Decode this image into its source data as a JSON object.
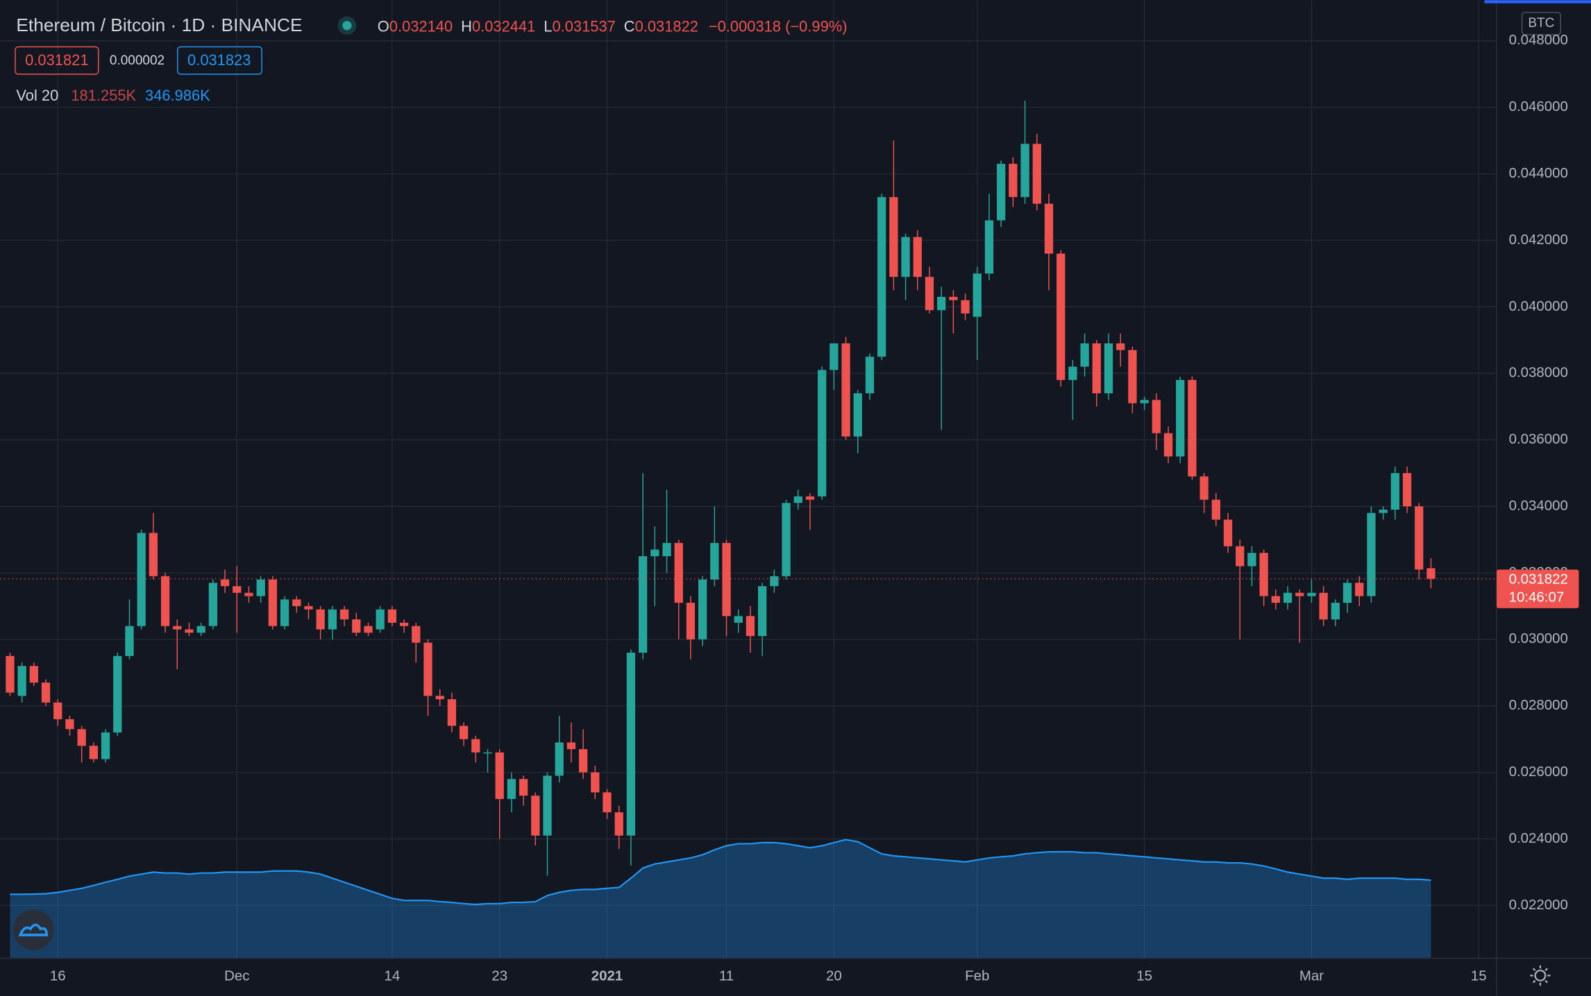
{
  "header": {
    "symbol": "Ethereum / Bitcoin · 1D · BINANCE",
    "ohlc": [
      {
        "label": "O",
        "value": "0.032140"
      },
      {
        "label": "H",
        "value": "0.032441"
      },
      {
        "label": "L",
        "value": "0.031537"
      },
      {
        "label": "C",
        "value": "0.031822"
      }
    ],
    "change": "−0.000318 (−0.99%)",
    "bid": "0.031821",
    "spread": "0.000002",
    "ask": "0.031823",
    "vol_label": "Vol 20",
    "volume": "181.255K",
    "volume_ma": "346.986K",
    "currency": "BTC"
  },
  "chart_data": {
    "type": "candlestick",
    "up_color": "#26a69a",
    "down_color": "#ef5350",
    "grid": true,
    "xlim": [
      -0.84,
      124.5
    ],
    "xticks": [
      {
        "value": 4,
        "label": "16"
      },
      {
        "value": 19,
        "label": "Dec"
      },
      {
        "value": 32,
        "label": "14"
      },
      {
        "value": 41,
        "label": "23"
      },
      {
        "value": 50,
        "label": "2021"
      },
      {
        "value": 60,
        "label": "11"
      },
      {
        "value": 69,
        "label": "20"
      },
      {
        "value": 81,
        "label": "Feb"
      },
      {
        "value": 95,
        "label": "15"
      },
      {
        "value": 109,
        "label": "Mar"
      },
      {
        "value": 123,
        "label": "15"
      }
    ],
    "ylim": [
      0.02041,
      0.04922
    ],
    "yticks": [
      {
        "value": 0.022,
        "label": "0.022000"
      },
      {
        "value": 0.024,
        "label": "0.024000"
      },
      {
        "value": 0.026,
        "label": "0.026000"
      },
      {
        "value": 0.028,
        "label": "0.028000"
      },
      {
        "value": 0.03,
        "label": "0.030000"
      },
      {
        "value": 0.032,
        "label": "0.032000"
      },
      {
        "value": 0.034,
        "label": "0.034000"
      },
      {
        "value": 0.036,
        "label": "0.036000"
      },
      {
        "value": 0.038,
        "label": "0.038000"
      },
      {
        "value": 0.04,
        "label": "0.040000"
      },
      {
        "value": 0.042,
        "label": "0.042000"
      },
      {
        "value": 0.044,
        "label": "0.044000"
      },
      {
        "value": 0.046,
        "label": "0.046000"
      },
      {
        "value": 0.048,
        "label": "0.048000"
      }
    ],
    "last_price": {
      "value": 0.031822,
      "label": "0.031822"
    },
    "countdown": "10:46:07",
    "ohlc": [
      [
        0.0295,
        0.0296,
        0.0283,
        0.0284
      ],
      [
        0.0283,
        0.0293,
        0.0281,
        0.0292
      ],
      [
        0.0292,
        0.0293,
        0.0286,
        0.0287
      ],
      [
        0.0287,
        0.0288,
        0.028,
        0.0281
      ],
      [
        0.0281,
        0.0282,
        0.0274,
        0.0276
      ],
      [
        0.0276,
        0.0277,
        0.0271,
        0.0273
      ],
      [
        0.0273,
        0.0274,
        0.0263,
        0.0268
      ],
      [
        0.0268,
        0.0269,
        0.0263,
        0.0264
      ],
      [
        0.0264,
        0.0273,
        0.0263,
        0.0272
      ],
      [
        0.0272,
        0.0296,
        0.0271,
        0.0295
      ],
      [
        0.0295,
        0.0312,
        0.0294,
        0.0304
      ],
      [
        0.0304,
        0.0333,
        0.0303,
        0.0332
      ],
      [
        0.0332,
        0.0338,
        0.0318,
        0.0319
      ],
      [
        0.0319,
        0.032,
        0.0302,
        0.0304
      ],
      [
        0.0304,
        0.0306,
        0.0291,
        0.0303
      ],
      [
        0.0303,
        0.0305,
        0.0301,
        0.0302
      ],
      [
        0.0302,
        0.0305,
        0.0301,
        0.0304
      ],
      [
        0.0304,
        0.0318,
        0.0303,
        0.0317
      ],
      [
        0.0318,
        0.0321,
        0.0314,
        0.0316
      ],
      [
        0.0316,
        0.0322,
        0.0302,
        0.0314
      ],
      [
        0.0314,
        0.0316,
        0.0311,
        0.0313
      ],
      [
        0.0313,
        0.0319,
        0.0311,
        0.0318
      ],
      [
        0.0318,
        0.0319,
        0.0303,
        0.0304
      ],
      [
        0.0304,
        0.0313,
        0.0303,
        0.0312
      ],
      [
        0.0312,
        0.0313,
        0.0308,
        0.031
      ],
      [
        0.031,
        0.0311,
        0.0306,
        0.0309
      ],
      [
        0.0309,
        0.031,
        0.03,
        0.0303
      ],
      [
        0.0303,
        0.031,
        0.03,
        0.0309
      ],
      [
        0.0309,
        0.031,
        0.0304,
        0.0306
      ],
      [
        0.0306,
        0.0308,
        0.0301,
        0.0302
      ],
      [
        0.0304,
        0.0305,
        0.0301,
        0.0302
      ],
      [
        0.0303,
        0.031,
        0.0302,
        0.0309
      ],
      [
        0.0309,
        0.031,
        0.0304,
        0.0305
      ],
      [
        0.0305,
        0.0306,
        0.0302,
        0.0304
      ],
      [
        0.0304,
        0.0305,
        0.0293,
        0.0299
      ],
      [
        0.0299,
        0.03,
        0.0277,
        0.0283
      ],
      [
        0.0283,
        0.0285,
        0.028,
        0.0282
      ],
      [
        0.0282,
        0.0284,
        0.0272,
        0.0274
      ],
      [
        0.0274,
        0.0275,
        0.0268,
        0.027
      ],
      [
        0.027,
        0.0271,
        0.0263,
        0.0266
      ],
      [
        0.0266,
        0.0267,
        0.026,
        0.0266
      ],
      [
        0.0266,
        0.0267,
        0.024,
        0.0252
      ],
      [
        0.0252,
        0.026,
        0.0248,
        0.0258
      ],
      [
        0.0258,
        0.0259,
        0.025,
        0.0253
      ],
      [
        0.0253,
        0.0254,
        0.0238,
        0.0241
      ],
      [
        0.0241,
        0.026,
        0.0229,
        0.0259
      ],
      [
        0.0259,
        0.0277,
        0.0257,
        0.0269
      ],
      [
        0.0269,
        0.0275,
        0.0263,
        0.0267
      ],
      [
        0.0267,
        0.0273,
        0.0258,
        0.026
      ],
      [
        0.026,
        0.0262,
        0.0252,
        0.0254
      ],
      [
        0.0254,
        0.0255,
        0.0246,
        0.0248
      ],
      [
        0.0248,
        0.025,
        0.0237,
        0.0241
      ],
      [
        0.0241,
        0.0297,
        0.0232,
        0.0296
      ],
      [
        0.0296,
        0.035,
        0.0294,
        0.0325
      ],
      [
        0.0325,
        0.0334,
        0.031,
        0.0327
      ],
      [
        0.0325,
        0.0345,
        0.032,
        0.0329
      ],
      [
        0.0329,
        0.033,
        0.03,
        0.0311
      ],
      [
        0.0311,
        0.0313,
        0.0294,
        0.03
      ],
      [
        0.03,
        0.0319,
        0.0298,
        0.0318
      ],
      [
        0.0318,
        0.034,
        0.0316,
        0.0329
      ],
      [
        0.0329,
        0.033,
        0.0301,
        0.0307
      ],
      [
        0.0305,
        0.0309,
        0.0302,
        0.0307
      ],
      [
        0.0307,
        0.031,
        0.0296,
        0.0301
      ],
      [
        0.0301,
        0.0317,
        0.0295,
        0.0316
      ],
      [
        0.0316,
        0.0321,
        0.0314,
        0.0319
      ],
      [
        0.0319,
        0.0342,
        0.0318,
        0.0341
      ],
      [
        0.0341,
        0.0345,
        0.0339,
        0.0343
      ],
      [
        0.0343,
        0.0344,
        0.0333,
        0.0342
      ],
      [
        0.0343,
        0.0382,
        0.0342,
        0.0381
      ],
      [
        0.0381,
        0.0389,
        0.0375,
        0.0389
      ],
      [
        0.0389,
        0.0391,
        0.036,
        0.0361
      ],
      [
        0.0361,
        0.0375,
        0.0356,
        0.0374
      ],
      [
        0.0374,
        0.0386,
        0.0372,
        0.0385
      ],
      [
        0.0385,
        0.0434,
        0.0384,
        0.0433
      ],
      [
        0.0433,
        0.045,
        0.0405,
        0.0409
      ],
      [
        0.0409,
        0.0422,
        0.0402,
        0.0421
      ],
      [
        0.0421,
        0.0423,
        0.0405,
        0.0409
      ],
      [
        0.0409,
        0.0412,
        0.0398,
        0.0399
      ],
      [
        0.0399,
        0.0406,
        0.0363,
        0.0403
      ],
      [
        0.0403,
        0.0405,
        0.0392,
        0.0402
      ],
      [
        0.0402,
        0.0404,
        0.0396,
        0.0398
      ],
      [
        0.0397,
        0.0412,
        0.0384,
        0.041
      ],
      [
        0.041,
        0.0434,
        0.0408,
        0.0426
      ],
      [
        0.0426,
        0.0444,
        0.0424,
        0.0443
      ],
      [
        0.0443,
        0.0445,
        0.043,
        0.0433
      ],
      [
        0.0433,
        0.0462,
        0.0431,
        0.0449
      ],
      [
        0.0449,
        0.0452,
        0.0429,
        0.0431
      ],
      [
        0.0431,
        0.0434,
        0.0405,
        0.0416
      ],
      [
        0.0416,
        0.0417,
        0.0376,
        0.0378
      ],
      [
        0.0378,
        0.0384,
        0.0366,
        0.0382
      ],
      [
        0.0382,
        0.0392,
        0.0379,
        0.0389
      ],
      [
        0.0389,
        0.039,
        0.037,
        0.0374
      ],
      [
        0.0374,
        0.0392,
        0.0372,
        0.0389
      ],
      [
        0.0389,
        0.0392,
        0.0382,
        0.0387
      ],
      [
        0.0387,
        0.0388,
        0.0368,
        0.0371
      ],
      [
        0.0371,
        0.0373,
        0.0369,
        0.0372
      ],
      [
        0.0372,
        0.0374,
        0.0357,
        0.0362
      ],
      [
        0.0362,
        0.0364,
        0.0353,
        0.0355
      ],
      [
        0.0355,
        0.0379,
        0.0353,
        0.0378
      ],
      [
        0.0378,
        0.0379,
        0.0348,
        0.0349
      ],
      [
        0.0349,
        0.035,
        0.0338,
        0.0342
      ],
      [
        0.0342,
        0.0344,
        0.0334,
        0.0336
      ],
      [
        0.0336,
        0.0338,
        0.0326,
        0.0328
      ],
      [
        0.0328,
        0.033,
        0.03,
        0.0322
      ],
      [
        0.0322,
        0.0328,
        0.0316,
        0.0326
      ],
      [
        0.0326,
        0.0327,
        0.031,
        0.0313
      ],
      [
        0.0313,
        0.0315,
        0.0309,
        0.0311
      ],
      [
        0.0311,
        0.0316,
        0.0309,
        0.0314
      ],
      [
        0.0314,
        0.0315,
        0.0299,
        0.0313
      ],
      [
        0.0313,
        0.0318,
        0.0311,
        0.0314
      ],
      [
        0.0314,
        0.0316,
        0.0304,
        0.0306
      ],
      [
        0.0306,
        0.0312,
        0.0304,
        0.0311
      ],
      [
        0.0311,
        0.0318,
        0.0308,
        0.0317
      ],
      [
        0.0317,
        0.0319,
        0.031,
        0.0313
      ],
      [
        0.0313,
        0.034,
        0.0311,
        0.0338
      ],
      [
        0.0338,
        0.034,
        0.0336,
        0.0339
      ],
      [
        0.0339,
        0.0352,
        0.0336,
        0.035
      ],
      [
        0.035,
        0.0352,
        0.0338,
        0.034
      ],
      [
        0.034,
        0.0341,
        0.0318,
        0.0321
      ],
      [
        0.03214,
        0.032441,
        0.031537,
        0.031822
      ]
    ],
    "volume_ma": {
      "color": "#2196f3",
      "values": [
        284,
        284,
        285,
        287,
        293,
        302,
        311,
        324,
        338,
        351,
        365,
        374,
        383,
        379,
        379,
        374,
        379,
        379,
        383,
        383,
        383,
        383,
        388,
        388,
        388,
        383,
        374,
        356,
        338,
        320,
        302,
        284,
        266,
        257,
        257,
        257,
        252,
        248,
        243,
        239,
        243,
        243,
        248,
        248,
        252,
        279,
        293,
        302,
        306,
        306,
        311,
        315,
        356,
        401,
        419,
        428,
        437,
        446,
        460,
        482,
        500,
        509,
        509,
        514,
        514,
        509,
        500,
        491,
        500,
        514,
        527,
        518,
        491,
        464,
        455,
        451,
        446,
        442,
        437,
        433,
        428,
        437,
        446,
        451,
        455,
        464,
        469,
        473,
        473,
        473,
        469,
        469,
        464,
        460,
        455,
        451,
        446,
        442,
        437,
        433,
        428,
        428,
        424,
        424,
        419,
        410,
        397,
        383,
        374,
        365,
        356,
        356,
        351,
        356,
        356,
        356,
        356,
        351,
        351,
        346.986
      ]
    }
  }
}
